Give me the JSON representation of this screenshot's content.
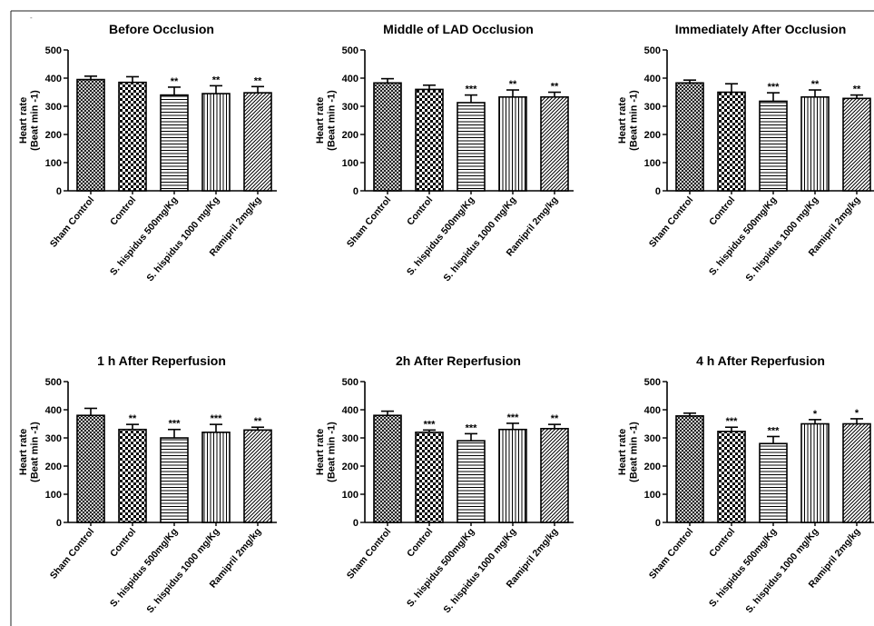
{
  "figure": {
    "marker": "-",
    "patterns": [
      "crosshatch-fine",
      "checker",
      "horizontal-lines",
      "vertical-lines",
      "diagonal-lines"
    ]
  },
  "chart_data": [
    {
      "type": "bar",
      "title": "Before Occlusion",
      "ylabel": [
        "Heart rate",
        "(Beat min -1)"
      ],
      "ylim": [
        0,
        500
      ],
      "yticks": [
        "0",
        "100",
        "200",
        "300",
        "400",
        "500"
      ],
      "categories": [
        "Sham Control",
        "Control",
        "S. hispidus 500mg/Kg",
        "S. hispidus 1000 mg/Kg",
        "Ramipril 2mg/kg"
      ],
      "values": [
        395,
        385,
        340,
        345,
        348
      ],
      "errors": [
        12,
        20,
        28,
        28,
        22
      ],
      "significance": [
        "",
        "",
        "**",
        "**",
        "**"
      ]
    },
    {
      "type": "bar",
      "title": "Middle of LAD Occlusion",
      "ylabel": [
        "Heart rate",
        "(Beat min -1)"
      ],
      "ylim": [
        0,
        500
      ],
      "yticks": [
        "0",
        "100",
        "200",
        "300",
        "400",
        "500"
      ],
      "categories": [
        "Sham Control",
        "Control",
        "S. hispidus 500mg/Kg",
        "S. hispidus 1000 mg/Kg",
        "Ramipril 2mg/kg"
      ],
      "values": [
        383,
        360,
        313,
        333,
        333
      ],
      "errors": [
        15,
        15,
        27,
        25,
        17
      ],
      "significance": [
        "",
        "",
        "***",
        "**",
        "**"
      ]
    },
    {
      "type": "bar",
      "title": "Immediately After Occlusion",
      "ylabel": [
        "Heart rate",
        "(Beat min -1)"
      ],
      "ylim": [
        0,
        500
      ],
      "yticks": [
        "0",
        "100",
        "200",
        "300",
        "400",
        "500"
      ],
      "categories": [
        "Sham Control",
        "Control",
        "S. hispidus 500mg/Kg",
        "S. hispidus 1000 mg/Kg",
        "Ramipril 2mg/kg"
      ],
      "values": [
        383,
        350,
        318,
        333,
        328
      ],
      "errors": [
        10,
        30,
        30,
        25,
        12
      ],
      "significance": [
        "",
        "",
        "***",
        "**",
        "**"
      ]
    },
    {
      "type": "bar",
      "title": "1 h After Reperfusion",
      "ylabel": [
        "Heart rate",
        "(Beat min -1)"
      ],
      "ylim": [
        0,
        500
      ],
      "yticks": [
        "0",
        "100",
        "200",
        "300",
        "400",
        "500"
      ],
      "categories": [
        "Sham Control",
        "Control",
        "S. hispidus 500mg/Kg",
        "S. hispidus 1000 mg/Kg",
        "Ramipril 2mg/kg"
      ],
      "values": [
        380,
        330,
        300,
        320,
        328
      ],
      "errors": [
        25,
        18,
        30,
        28,
        10
      ],
      "significance": [
        "",
        "**",
        "***",
        "***",
        "**"
      ]
    },
    {
      "type": "bar",
      "title": "2h After Reperfusion",
      "ylabel": [
        "Heart rate",
        "(Beat min -1)"
      ],
      "ylim": [
        0,
        500
      ],
      "yticks": [
        "0",
        "100",
        "200",
        "300",
        "400",
        "500"
      ],
      "categories": [
        "Sham Control",
        "Control",
        "S. hispidus 500mg/Kg",
        "S. hispidus 1000 mg/Kg",
        "Ramipril 2mg/kg"
      ],
      "values": [
        380,
        320,
        290,
        330,
        333
      ],
      "errors": [
        15,
        8,
        25,
        22,
        15
      ],
      "significance": [
        "",
        "***",
        "***",
        "***",
        "**"
      ]
    },
    {
      "type": "bar",
      "title": "4 h After Reperfusion",
      "ylabel": [
        "Heart rate",
        "(Beat min -1)"
      ],
      "ylim": [
        0,
        500
      ],
      "yticks": [
        "0",
        "100",
        "200",
        "300",
        "400",
        "500"
      ],
      "categories": [
        "Sham Control",
        "Control",
        "S. hispidus 500mg/Kg",
        "S. hispidus 1000 mg/Kg",
        "Ramipril 2mg/kg"
      ],
      "values": [
        378,
        323,
        280,
        350,
        350
      ],
      "errors": [
        10,
        15,
        25,
        15,
        18
      ],
      "significance": [
        "",
        "***",
        "***",
        "*",
        "*"
      ]
    }
  ]
}
